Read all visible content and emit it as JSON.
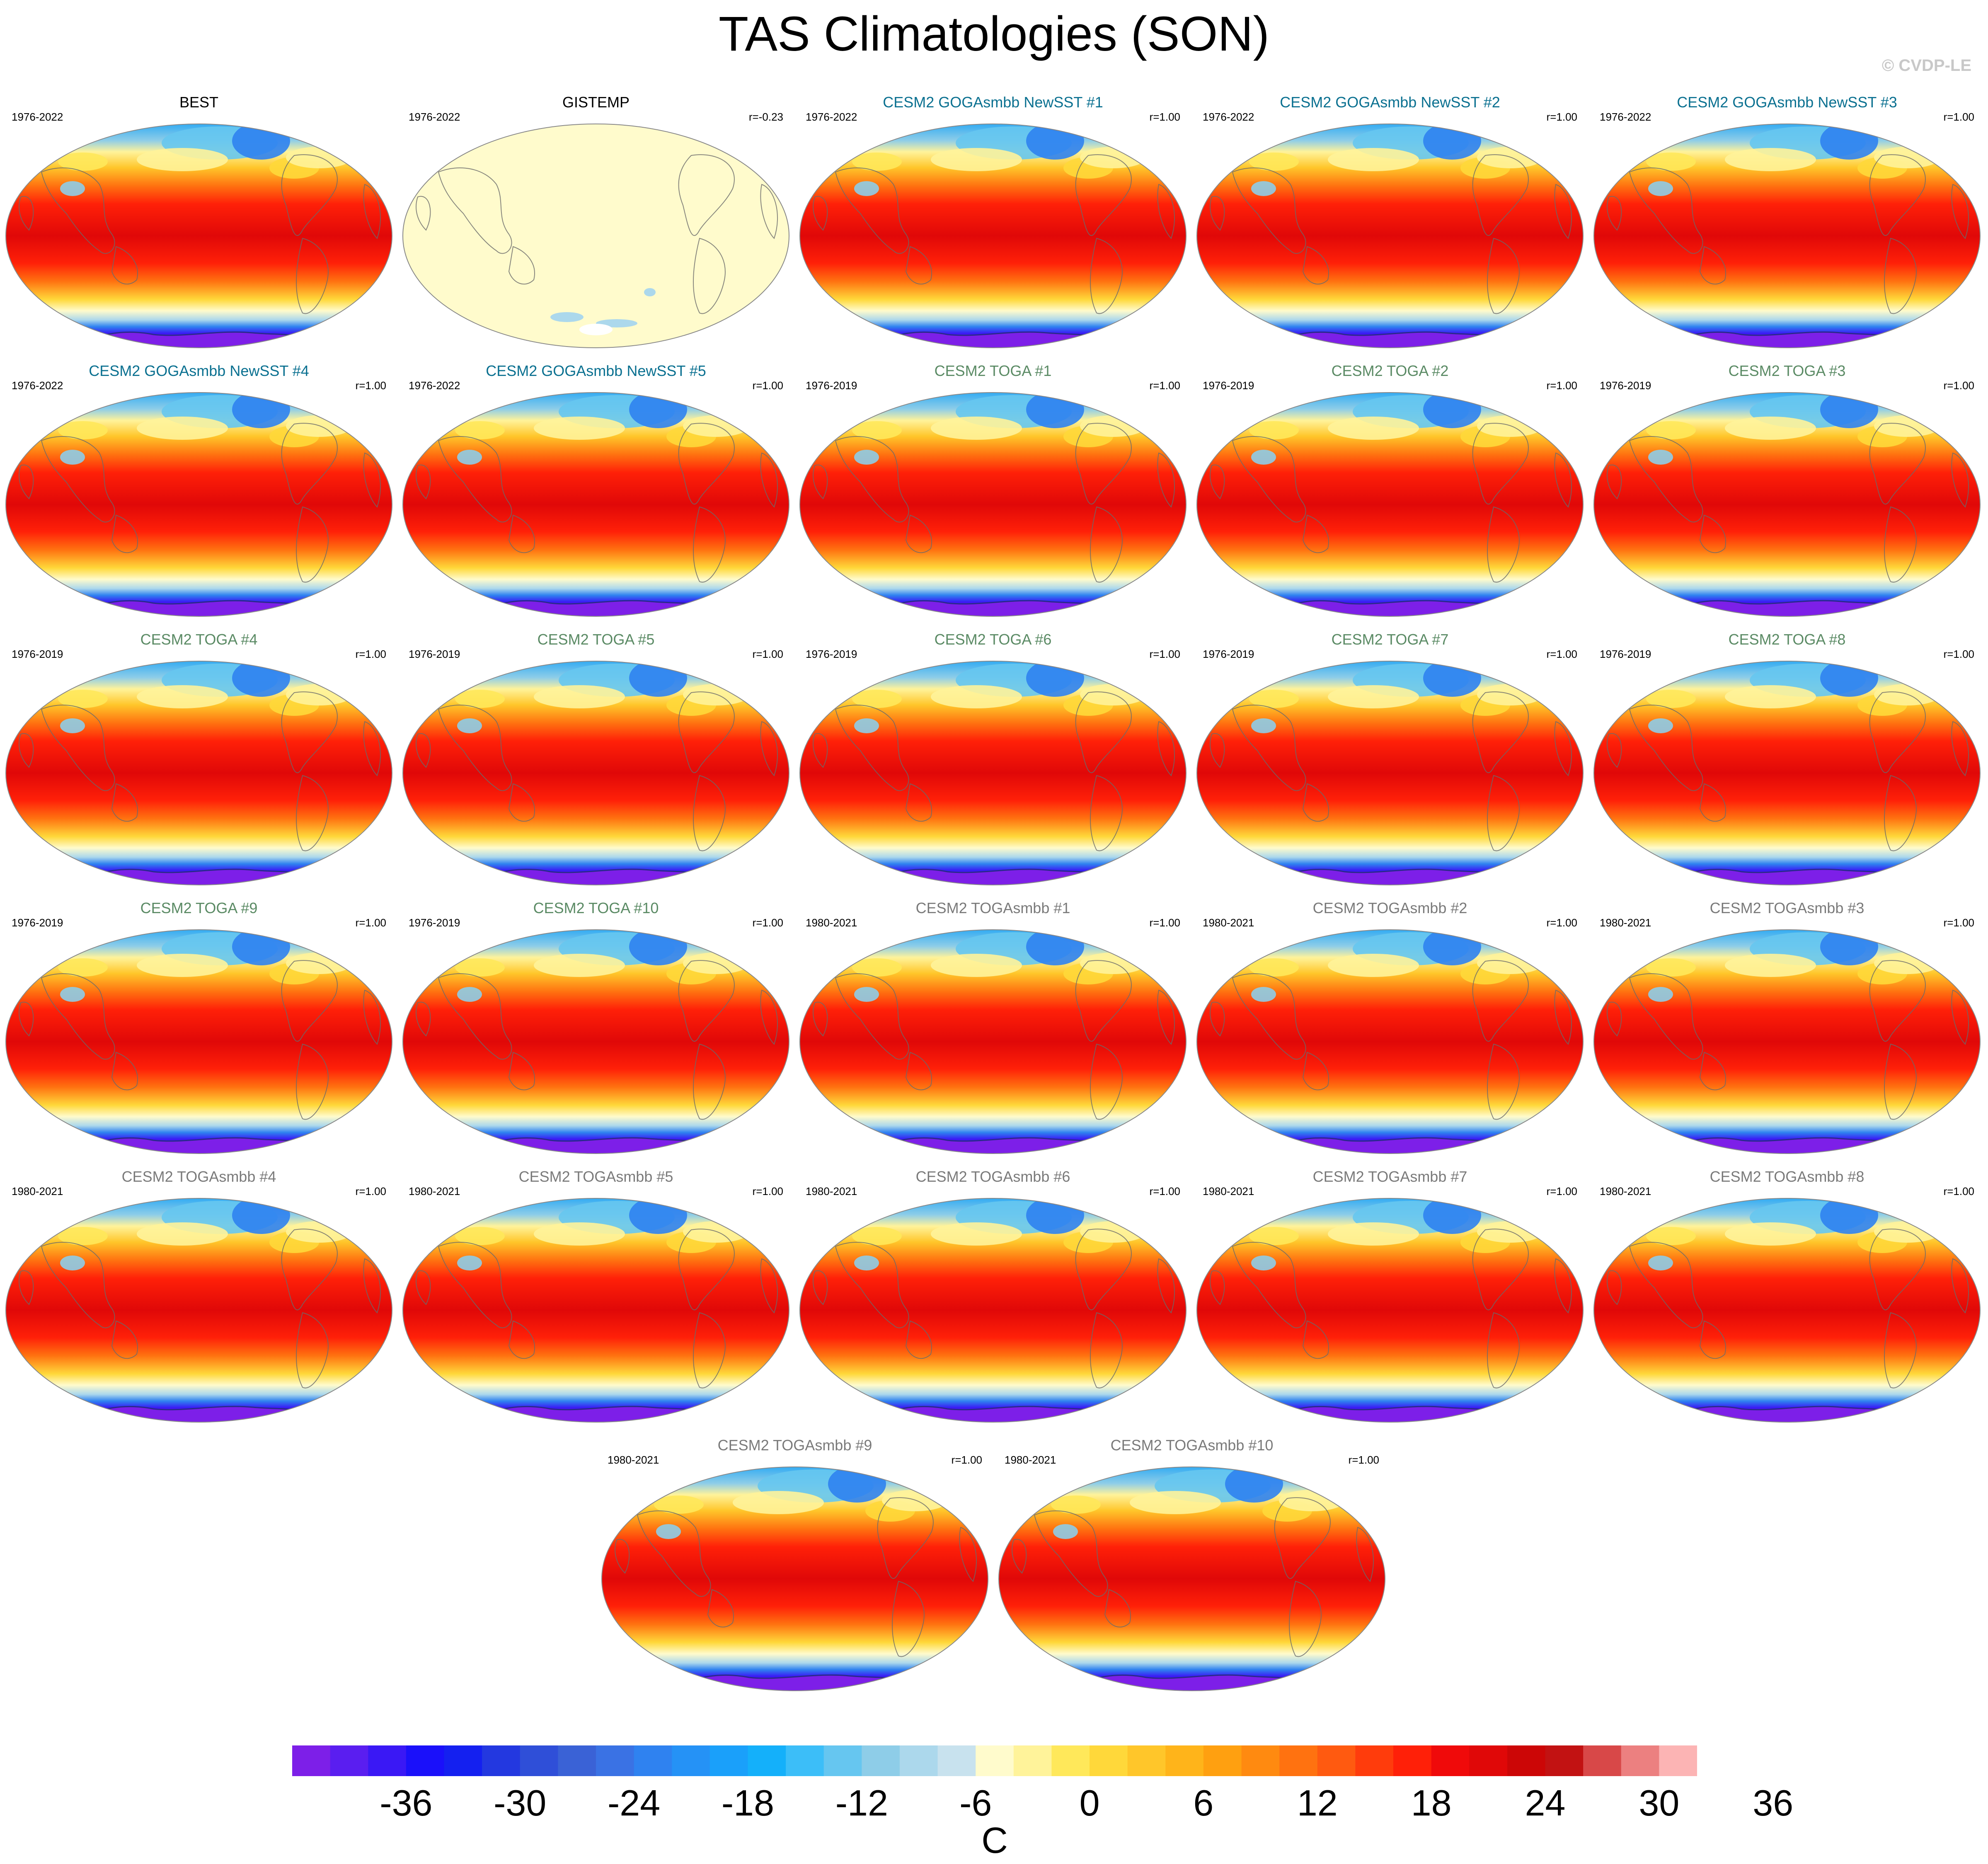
{
  "title": "TAS Climatologies (SON)",
  "credit": "© CVDP-LE",
  "panels": [
    {
      "name": "BEST",
      "years": "1976-2022",
      "r": "",
      "group": "obs",
      "style": "warm"
    },
    {
      "name": "GISTEMP",
      "years": "1976-2022",
      "r": "r=-0.23",
      "group": "obs",
      "style": "anom"
    },
    {
      "name": "CESM2 GOGAsmbb NewSST #1",
      "years": "1976-2022",
      "r": "r=1.00",
      "group": "goga",
      "style": "warm"
    },
    {
      "name": "CESM2 GOGAsmbb NewSST #2",
      "years": "1976-2022",
      "r": "r=1.00",
      "group": "goga",
      "style": "warm"
    },
    {
      "name": "CESM2 GOGAsmbb NewSST #3",
      "years": "1976-2022",
      "r": "r=1.00",
      "group": "goga",
      "style": "warm"
    },
    {
      "name": "CESM2 GOGAsmbb NewSST #4",
      "years": "1976-2022",
      "r": "r=1.00",
      "group": "goga",
      "style": "warm"
    },
    {
      "name": "CESM2 GOGAsmbb NewSST #5",
      "years": "1976-2022",
      "r": "r=1.00",
      "group": "goga",
      "style": "warm"
    },
    {
      "name": "CESM2 TOGA #1",
      "years": "1976-2019",
      "r": "r=1.00",
      "group": "toga",
      "style": "warm"
    },
    {
      "name": "CESM2 TOGA #2",
      "years": "1976-2019",
      "r": "r=1.00",
      "group": "toga",
      "style": "warm"
    },
    {
      "name": "CESM2 TOGA #3",
      "years": "1976-2019",
      "r": "r=1.00",
      "group": "toga",
      "style": "warm"
    },
    {
      "name": "CESM2 TOGA #4",
      "years": "1976-2019",
      "r": "r=1.00",
      "group": "toga",
      "style": "warm"
    },
    {
      "name": "CESM2 TOGA #5",
      "years": "1976-2019",
      "r": "r=1.00",
      "group": "toga",
      "style": "warm"
    },
    {
      "name": "CESM2 TOGA #6",
      "years": "1976-2019",
      "r": "r=1.00",
      "group": "toga",
      "style": "warm"
    },
    {
      "name": "CESM2 TOGA #7",
      "years": "1976-2019",
      "r": "r=1.00",
      "group": "toga",
      "style": "warm"
    },
    {
      "name": "CESM2 TOGA #8",
      "years": "1976-2019",
      "r": "r=1.00",
      "group": "toga",
      "style": "warm"
    },
    {
      "name": "CESM2 TOGA #9",
      "years": "1976-2019",
      "r": "r=1.00",
      "group": "toga",
      "style": "warm"
    },
    {
      "name": "CESM2 TOGA #10",
      "years": "1976-2019",
      "r": "r=1.00",
      "group": "toga",
      "style": "warm"
    },
    {
      "name": "CESM2 TOGAsmbb #1",
      "years": "1980-2021",
      "r": "r=1.00",
      "group": "smbb",
      "style": "warm"
    },
    {
      "name": "CESM2 TOGAsmbb #2",
      "years": "1980-2021",
      "r": "r=1.00",
      "group": "smbb",
      "style": "warm"
    },
    {
      "name": "CESM2 TOGAsmbb #3",
      "years": "1980-2021",
      "r": "r=1.00",
      "group": "smbb",
      "style": "warm"
    },
    {
      "name": "CESM2 TOGAsmbb #4",
      "years": "1980-2021",
      "r": "r=1.00",
      "group": "smbb",
      "style": "warm"
    },
    {
      "name": "CESM2 TOGAsmbb #5",
      "years": "1980-2021",
      "r": "r=1.00",
      "group": "smbb",
      "style": "warm"
    },
    {
      "name": "CESM2 TOGAsmbb #6",
      "years": "1980-2021",
      "r": "r=1.00",
      "group": "smbb",
      "style": "warm"
    },
    {
      "name": "CESM2 TOGAsmbb #7",
      "years": "1980-2021",
      "r": "r=1.00",
      "group": "smbb",
      "style": "warm"
    },
    {
      "name": "CESM2 TOGAsmbb #8",
      "years": "1980-2021",
      "r": "r=1.00",
      "group": "smbb",
      "style": "warm"
    },
    {
      "name": "CESM2 TOGAsmbb #9",
      "years": "1980-2021",
      "r": "r=1.00",
      "group": "smbb",
      "style": "warm"
    },
    {
      "name": "CESM2 TOGAsmbb #10",
      "years": "1980-2021",
      "r": "r=1.00",
      "group": "smbb",
      "style": "warm"
    }
  ],
  "colorbar": {
    "colors": [
      "#7d1fe8",
      "#5a1ef0",
      "#3a18f5",
      "#1a10fa",
      "#1420f0",
      "#2338e0",
      "#2f4fd8",
      "#3a62d6",
      "#3a72e4",
      "#2f82f0",
      "#2592f6",
      "#1aa0fa",
      "#14b0fa",
      "#3cbef8",
      "#66c6f0",
      "#8ecde8",
      "#acd8ec",
      "#c8e2ee",
      "#fffbcc",
      "#fff39a",
      "#ffe85a",
      "#ffd83a",
      "#ffc62a",
      "#ffb41a",
      "#ffa010",
      "#ff8a10",
      "#ff7210",
      "#ff5a10",
      "#ff3c0c",
      "#ff2008",
      "#f00a0a",
      "#e00808",
      "#cc0606",
      "#c21212",
      "#d84848",
      "#ec8080",
      "#fcb4b4"
    ],
    "ticks": [
      "-36",
      "-30",
      "-24",
      "-18",
      "-12",
      "-6",
      "0",
      "6",
      "12",
      "18",
      "24",
      "30",
      "36"
    ],
    "units": "C"
  },
  "colors": {
    "obs": "#000000",
    "goga": "#0a7090",
    "toga": "#5a8a64",
    "smbb": "#7a7a7a"
  }
}
